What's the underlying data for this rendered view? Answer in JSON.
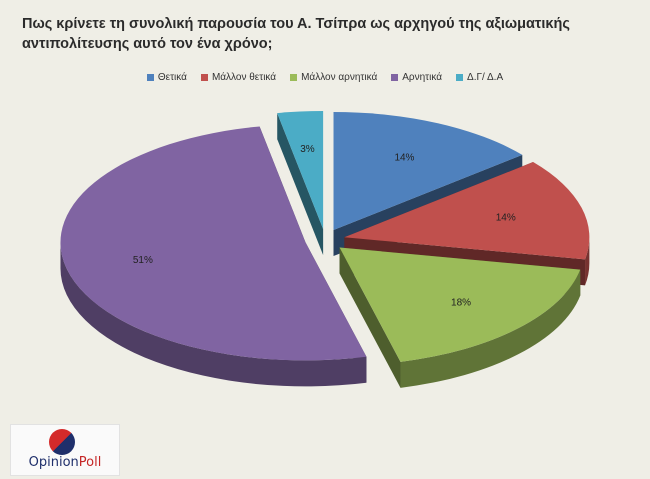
{
  "title_line1": "Πως κρίνετε τη συνολική παρουσία του Α. Τσίπρα ως αρχηγού της αξιωματικής",
  "title_line2": "αντιπολίτευσης αυτό τον ένα χρόνο;",
  "chart_data": {
    "type": "pie",
    "categories": [
      "Θετικά",
      "Μάλλον θετικά",
      "Μάλλον αρνητικά",
      "Αρνητικά",
      "Δ.Γ/ Δ.Α"
    ],
    "values": [
      14,
      14,
      18,
      51,
      3
    ],
    "labels": [
      "14%",
      "14%",
      "18%",
      "51%",
      "3%"
    ],
    "colors": [
      "#4f81bd",
      "#c0504d",
      "#9bbb59",
      "#8064a2",
      "#4bacc6"
    ],
    "legend_position": "top"
  },
  "logo": {
    "part1": "Opinion",
    "part2": "Poll"
  }
}
